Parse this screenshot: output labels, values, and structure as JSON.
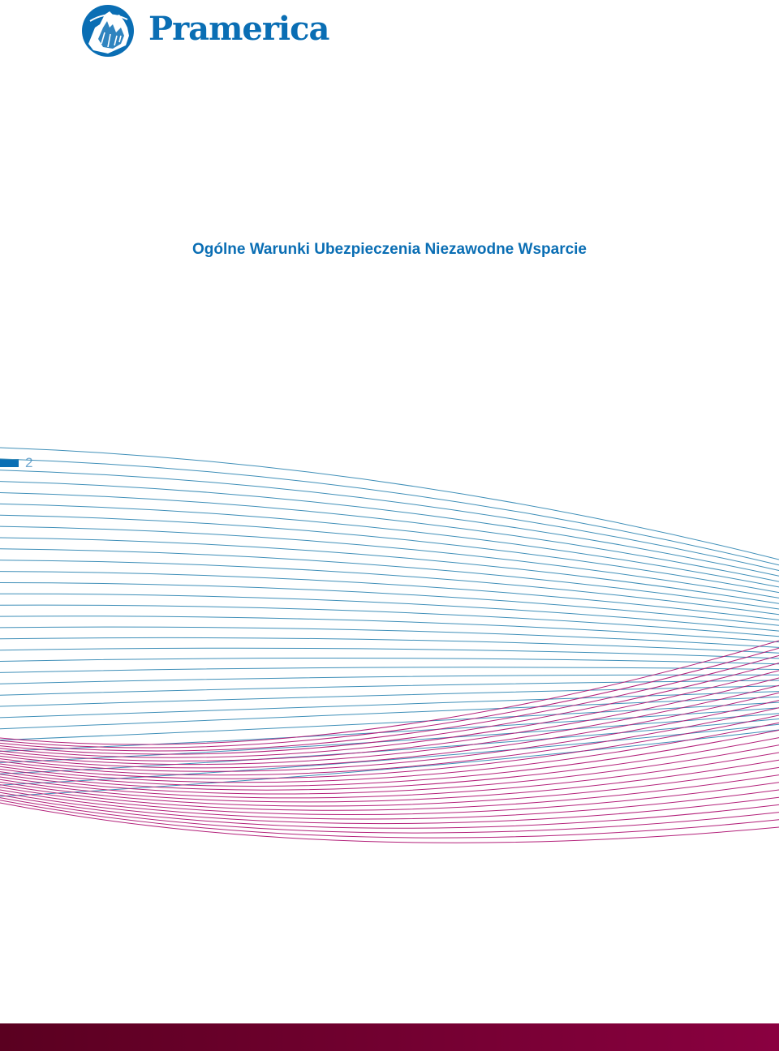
{
  "brand": {
    "name": "Pramerica",
    "color": "#0a6eb4"
  },
  "document": {
    "title": "Ogólne Warunki Ubezpieczenia Niezawodne Wsparcie",
    "title_color": "#0a6eb4"
  },
  "page": {
    "number": "2",
    "number_color": "#6fa7cf",
    "marker_color": "#0a6eb4"
  },
  "decoration": {
    "wave_blue_color": "#3f8fb8",
    "wave_magenta_color": "#b3217a",
    "footer_color_left": "#5a0020",
    "footer_color_right": "#8a0040"
  }
}
